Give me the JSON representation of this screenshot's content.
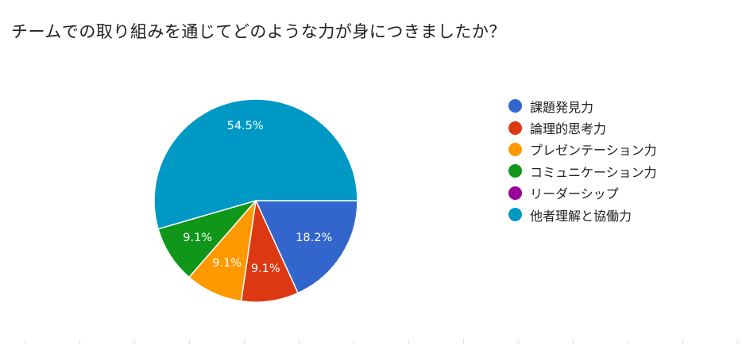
{
  "chart_data": {
    "type": "pie",
    "title": "チームでの取り組みを通じてどのような力が身につきましたか？",
    "legend_position": "right",
    "slices": [
      {
        "name": "課題発見力",
        "value": 18.2,
        "label": "18.2%",
        "color": "#3366cc"
      },
      {
        "name": "論理的思考力",
        "value": 9.1,
        "label": "9.1%",
        "color": "#dc3912"
      },
      {
        "name": "プレゼンテーション力",
        "value": 9.1,
        "label": "9.1%",
        "color": "#ff9900"
      },
      {
        "name": "コミュニケーション力",
        "value": 9.1,
        "label": "9.1%",
        "color": "#109618"
      },
      {
        "name": "リーダーシップ",
        "value": 0,
        "label": "",
        "color": "#990099"
      },
      {
        "name": "他者理解と協働力",
        "value": 54.5,
        "label": "54.5%",
        "color": "#0099c6"
      }
    ]
  }
}
